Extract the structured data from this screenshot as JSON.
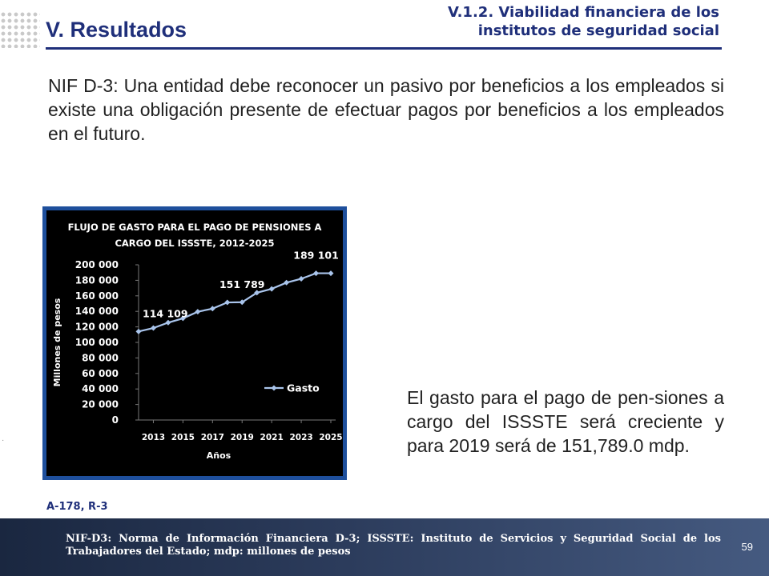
{
  "header": {
    "section_title": "V. Resultados",
    "subtitle_line1": "V.1.2. Viabilidad financiera de los",
    "subtitle_line2": "institutos de seguridad social"
  },
  "intro_text": "NIF D-3: Una entidad debe reconocer un pasivo por beneficios a los empleados si existe una obligación presente de efectuar pagos por beneficios a los empleados en el futuro.",
  "summary_text": "El gasto para el pago de pen-siones a cargo del ISSSTE será creciente y para 2019 será de 151,789.0 mdp.",
  "source_ref": "A-178, R-3",
  "footer": {
    "note": "NIF-D3: Norma de Información Financiera D-3; ISSSTE: Instituto de Servicios y Seguridad Social de los Trabajadores del Estado; mdp: millones de pesos",
    "page_number": "59"
  },
  "colors": {
    "brand_blue": "#1f2f7a",
    "chart_frame": "#1e4f9c",
    "chart_background": "#000000",
    "series_line": "#a9c4eb"
  },
  "chart_data": {
    "type": "line",
    "title_line1": "FLUJO DE GASTO PARA EL PAGO DE PENSIONES A",
    "title_line2": "CARGO DEL ISSSTE, 2012-2025",
    "xlabel": "Años",
    "ylabel": "Millones de pesos",
    "x": [
      2012,
      2013,
      2014,
      2015,
      2016,
      2017,
      2018,
      2019,
      2020,
      2021,
      2022,
      2023,
      2024,
      2025
    ],
    "x_tick_labels": [
      "2013",
      "2015",
      "2017",
      "2019",
      "2021",
      "2023",
      "2025"
    ],
    "x_tick_values": [
      2013,
      2015,
      2017,
      2019,
      2021,
      2023,
      2025
    ],
    "ylim": [
      0,
      200000
    ],
    "y_ticks": [
      0,
      20000,
      40000,
      60000,
      80000,
      100000,
      120000,
      140000,
      160000,
      180000,
      200000
    ],
    "y_tick_labels": [
      "0",
      "20 000",
      "40 000",
      "60 000",
      "80 000",
      "100 000",
      "120 000",
      "140 000",
      "160 000",
      "180 000",
      "200 000"
    ],
    "series": [
      {
        "name": "Gasto",
        "values": [
          114109,
          118500,
          125500,
          131000,
          139500,
          143500,
          151500,
          151789,
          164000,
          169000,
          177000,
          182000,
          189101,
          189101
        ]
      }
    ],
    "data_labels": [
      {
        "x": 2012,
        "y": 114109,
        "text": "114 109"
      },
      {
        "x": 2019,
        "y": 151789,
        "text": "151 789"
      },
      {
        "x": 2024,
        "y": 189101,
        "text": "189 101"
      }
    ],
    "legend_position": "lower-right",
    "grid": false
  }
}
